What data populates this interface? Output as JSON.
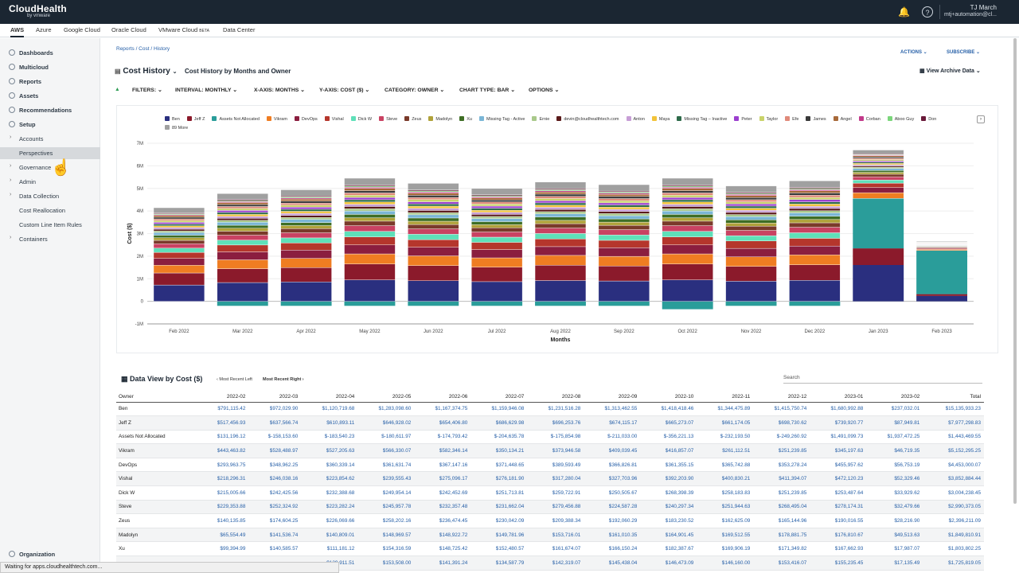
{
  "topbar": {
    "logo": "CloudHealth",
    "logo_sub": "by vmware",
    "user_name": "TJ March",
    "user_email": "mtj+automation@cl..."
  },
  "clouds": [
    "AWS",
    "Azure",
    "Google Cloud",
    "Oracle Cloud",
    "VMware Cloud",
    "Data Center"
  ],
  "clouds_beta": "BETA",
  "sidebar": {
    "items": [
      "Dashboards",
      "Multicloud",
      "Reports",
      "Assets",
      "Recommendations",
      "Setup",
      "Accounts",
      "Perspectives",
      "Governance",
      "Admin",
      "Data Collection",
      "Cost Reallocation",
      "Custom Line Item Rules",
      "Containers"
    ],
    "org": "Organization"
  },
  "breadcrumb": "Reports / Cost / History",
  "actions": "ACTIONS",
  "subscribe": "SUBSCRIBE",
  "page_title": "Cost History",
  "page_subtitle": "Cost History by Months and Owner",
  "archive": "View Archive Data",
  "filters": {
    "filters": "FILTERS:",
    "interval": "INTERVAL:",
    "interval_v": "MONTHLY",
    "xaxis": "X-AXIS:",
    "xaxis_v": "MONTHS",
    "yaxis": "Y-AXIS:",
    "yaxis_v": "COST ($)",
    "category": "CATEGORY:",
    "category_v": "OWNER",
    "charttype": "CHART TYPE:",
    "charttype_v": "BAR",
    "options": "OPTIONS"
  },
  "colors": {
    "accent": "#2760a8",
    "topbar": "#1b2632"
  },
  "chart_data": {
    "type": "bar",
    "stacked": true,
    "xlabel": "Months",
    "ylabel": "Cost ($)",
    "ylim": [
      -1000000,
      7000000
    ],
    "yticks": [
      "-1M",
      "0",
      "1M",
      "2M",
      "3M",
      "4M",
      "5M",
      "6M",
      "7M"
    ],
    "categories": [
      "Feb 2022",
      "Mar 2022",
      "Apr 2022",
      "May 2022",
      "Jun 2022",
      "Jul 2022",
      "Aug 2022",
      "Sep 2022",
      "Oct 2022",
      "Nov 2022",
      "Dec 2022",
      "Jan 2023",
      "Feb 2023"
    ],
    "totals": [
      3650000,
      4200000,
      4350000,
      4800000,
      4600000,
      4400000,
      4650000,
      4550000,
      4800000,
      4500000,
      4700000,
      6700000,
      2650000
    ],
    "legend": [
      {
        "name": "Ben",
        "color": "#2a2f7f"
      },
      {
        "name": "Jeff Z",
        "color": "#8b1a2b"
      },
      {
        "name": "Assets Not Allocated",
        "color": "#2a9d9a"
      },
      {
        "name": "Vikram",
        "color": "#ef7d22"
      },
      {
        "name": "DevOps",
        "color": "#8b1e3f"
      },
      {
        "name": "Vishal",
        "color": "#b5362c"
      },
      {
        "name": "Dick W",
        "color": "#5fe0b9"
      },
      {
        "name": "Steve",
        "color": "#c94262"
      },
      {
        "name": "Zeus",
        "color": "#7a3a2a"
      },
      {
        "name": "Madolyn",
        "color": "#b0a23a"
      },
      {
        "name": "Xu",
        "color": "#3e6e25"
      },
      {
        "name": "Missing Tag - Active",
        "color": "#7ab6d6"
      },
      {
        "name": "Ernie",
        "color": "#a9c98b"
      },
      {
        "name": "devin@cloudhealthtech.com",
        "color": "#5a1a1a"
      },
      {
        "name": "Anton",
        "color": "#c79ed6"
      },
      {
        "name": "Maya",
        "color": "#f2c33a"
      },
      {
        "name": "Missing Tag – Inactive",
        "color": "#2e6b4a"
      },
      {
        "name": "Peter",
        "color": "#9b3fcf"
      },
      {
        "name": "Taylor",
        "color": "#c9d36a"
      },
      {
        "name": "Efe",
        "color": "#e08a7a"
      },
      {
        "name": "James",
        "color": "#3a3a3a"
      },
      {
        "name": "Angel",
        "color": "#a86a3a"
      },
      {
        "name": "Corban",
        "color": "#c23a8a"
      },
      {
        "name": "Aboo Guy",
        "color": "#7bd67b"
      },
      {
        "name": "Don",
        "color": "#6a1a3a"
      },
      {
        "name": "89 More",
        "color": "#a0a0a0"
      }
    ]
  },
  "dataview": {
    "title": "Data View by Cost ($)",
    "left": "Most Recent Left",
    "right": "Most Recent Right",
    "search": "Search"
  },
  "table": {
    "headers": [
      "Owner",
      "2022-02",
      "2022-03",
      "2022-04",
      "2022-05",
      "2022-06",
      "2022-07",
      "2022-08",
      "2022-09",
      "2022-10",
      "2022-11",
      "2022-12",
      "2023-01",
      "2023-02",
      "Total"
    ],
    "rows": [
      [
        "Ben",
        "$791,115.42",
        "$972,029.90",
        "$1,120,719.68",
        "$1,283,098.60",
        "$1,167,374.75",
        "$1,159,946.08",
        "$1,231,516.28",
        "$1,313,462.55",
        "$1,418,418.46",
        "$1,344,475.89",
        "$1,415,750.74",
        "$1,680,992.88",
        "$237,032.01",
        "$15,135,933.23"
      ],
      [
        "Jeff Z",
        "$517,456.93",
        "$637,566.74",
        "$610,893.11",
        "$646,928.02",
        "$654,406.80",
        "$686,629.98",
        "$696,253.76",
        "$674,115.17",
        "$665,273.07",
        "$661,174.05",
        "$698,730.62",
        "$739,920.77",
        "$87,949.81",
        "$7,977,298.83"
      ],
      [
        "Assets Not Allocated",
        "$131,196.12",
        "$-158,153.60",
        "$-183,540.23",
        "$-180,611.97",
        "$-174,793.42",
        "$-204,635.78",
        "$-175,854.98",
        "$-211,033.00",
        "$-356,221.13",
        "$-232,193.50",
        "$-249,260.92",
        "$1,491,099.73",
        "$1,937,472.25",
        "$1,443,469.55"
      ],
      [
        "Vikram",
        "$443,463.82",
        "$528,488.97",
        "$527,205.63",
        "$566,330.07",
        "$582,346.14",
        "$350,134.21",
        "$373,946.58",
        "$409,039.45",
        "$416,857.07",
        "$261,112.51",
        "$251,239.85",
        "$345,197.63",
        "$46,719.35",
        "$5,152,295.25"
      ],
      [
        "DevOps",
        "$293,963.75",
        "$348,962.25",
        "$360,339.14",
        "$361,631.74",
        "$367,147.16",
        "$371,448.65",
        "$389,593.49",
        "$366,826.81",
        "$361,355.15",
        "$365,742.88",
        "$353,278.24",
        "$455,957.62",
        "$56,753.19",
        "$4,453,000.07"
      ],
      [
        "Vishal",
        "$218,296.31",
        "$246,038.16",
        "$223,854.62",
        "$239,555.43",
        "$275,096.17",
        "$276,181.90",
        "$317,280.04",
        "$327,703.96",
        "$392,203.90",
        "$400,830.21",
        "$411,394.07",
        "$472,120.23",
        "$52,329.46",
        "$3,852,884.44"
      ],
      [
        "Dick W",
        "$215,005.66",
        "$242,425.56",
        "$232,388.68",
        "$249,954.14",
        "$242,452.69",
        "$251,713.81",
        "$259,722.91",
        "$250,505.67",
        "$268,398.39",
        "$258,183.83",
        "$251,239.85",
        "$253,487.64",
        "$33,929.62",
        "$3,004,238.45"
      ],
      [
        "Steve",
        "$229,353.88",
        "$252,324.92",
        "$223,282.24",
        "$245,957.78",
        "$232,357.48",
        "$231,662.04",
        "$279,456.88",
        "$224,587.28",
        "$240,297.34",
        "$251,944.63",
        "$268,495.04",
        "$278,174.31",
        "$32,479.66",
        "$2,990,373.05"
      ],
      [
        "Zeus",
        "$140,135.85",
        "$174,604.25",
        "$226,069.66",
        "$258,202.16",
        "$236,474.45",
        "$230,042.09",
        "$209,388.34",
        "$192,060.29",
        "$183,230.52",
        "$162,625.09",
        "$165,144.96",
        "$190,016.55",
        "$28,216.90",
        "$2,396,211.09"
      ],
      [
        "Madolyn",
        "$65,554.49",
        "$141,536.74",
        "$140,809.01",
        "$148,969.57",
        "$148,922.72",
        "$149,781.96",
        "$153,716.01",
        "$161,010.35",
        "$164,901.45",
        "$169,512.55",
        "$178,881.75",
        "$176,810.67",
        "$49,513.63",
        "$1,849,810.91"
      ],
      [
        "Xu",
        "$99,394.99",
        "$140,585.57",
        "$111,181.12",
        "$154,316.59",
        "$148,725.42",
        "$152,480.57",
        "$161,674.07",
        "$166,150.24",
        "$182,387.67",
        "$169,906.19",
        "$171,349.82",
        "$167,662.93",
        "$17,987.07",
        "$1,803,802.25"
      ],
      [
        "",
        "",
        "",
        "$139,911.51",
        "$153,508.00",
        "$141,391.24",
        "$134,587.79",
        "$142,319.07",
        "$145,438.04",
        "$146,473.09",
        "$146,160.00",
        "$153,416.07",
        "$155,235.45",
        "$17,135.49",
        "$1,725,819.05"
      ]
    ]
  },
  "status": "Waiting for apps.cloudhealthtech.com..."
}
